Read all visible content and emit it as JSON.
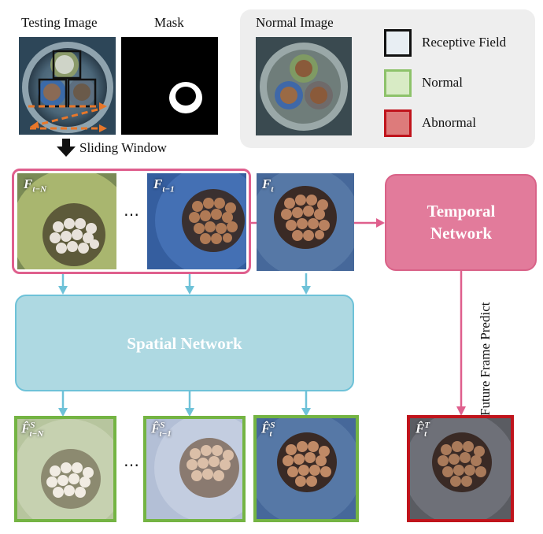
{
  "top": {
    "testing_image_label": "Testing Image",
    "mask_label": "Mask",
    "sliding_window_label": "Sliding Window"
  },
  "legend": {
    "normal_image_label": "Normal Image",
    "items": [
      {
        "label": "Receptive Field",
        "fill": "#e8eef3",
        "border": "#111111"
      },
      {
        "label": "Normal",
        "fill": "#d8ebc5",
        "border": "#8dc26a"
      },
      {
        "label": "Abnormal",
        "fill": "#dd7b7b",
        "border": "#c0141c"
      }
    ]
  },
  "frames": {
    "f_t_minus_n": {
      "base": "F",
      "sub": "t−N"
    },
    "f_t_minus_1": {
      "base": "F",
      "sub": "t−1"
    },
    "f_t": {
      "base": "F",
      "sub": "t"
    },
    "ellipsis": "⋯"
  },
  "networks": {
    "temporal_label": "Temporal Network",
    "spatial_label": "Spatial Network",
    "future_frame_predict_label": "Future Frame Predict"
  },
  "outputs": {
    "s_t_minus_n": {
      "base": "F̂",
      "sup": "S",
      "sub": "t−N"
    },
    "s_t_minus_1": {
      "base": "F̂",
      "sup": "S",
      "sub": "t−1"
    },
    "s_t": {
      "base": "F̂",
      "sup": "S",
      "sub": "t"
    },
    "t_t": {
      "base": "F̂",
      "sup": "T",
      "sub": "t"
    },
    "ellipsis": "⋯"
  },
  "colors": {
    "pink": "#df5f8d",
    "pink_fill": "#e27b9b",
    "cyan": "#6ec2d8",
    "cyan_fill": "#aed9e2",
    "green": "#74b443",
    "red": "#c0141c",
    "orange": "#e8772a"
  }
}
